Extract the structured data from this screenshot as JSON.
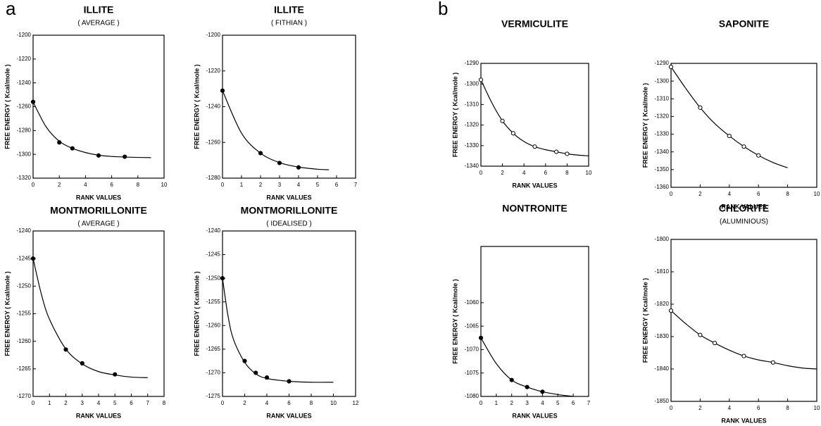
{
  "chart_data": [
    {
      "type": "line",
      "panel_label": "a",
      "title": "ILLITE",
      "subtitle": "( AVERAGE )",
      "x_label": "RANK  VALUES",
      "y_label": "FREE ENERGY ( Kcal/mole )",
      "marker": "filled",
      "color": "#000000",
      "x": [
        0,
        2,
        3,
        5,
        7
      ],
      "values": [
        -1256,
        -1290,
        -1295,
        -1301,
        -1302
      ],
      "curve": {
        "x": [
          0,
          1,
          2,
          3,
          4,
          5,
          6,
          7,
          8,
          9
        ],
        "values": [
          -1256,
          -1277,
          -1289,
          -1295,
          -1298.5,
          -1300.7,
          -1301.8,
          -1302.3,
          -1302.6,
          -1302.8
        ]
      },
      "xlim": [
        0,
        10
      ],
      "xticks": [
        0,
        2,
        4,
        6,
        8,
        10
      ],
      "ylim": [
        -1320,
        -1200
      ],
      "yticks": [
        -1320,
        -1300,
        -1280,
        -1260,
        -1240,
        -1220,
        -1200
      ]
    },
    {
      "type": "line",
      "title": "ILLITE",
      "subtitle": "( FITHIAN )",
      "x_label": "RANK  VALUES",
      "y_label": "FREE ENERGY ( Kcal/mole )",
      "marker": "filled",
      "color": "#000000",
      "x": [
        0,
        2,
        3,
        4
      ],
      "values": [
        -1231,
        -1266,
        -1271.5,
        -1274
      ],
      "curve": {
        "x": [
          0,
          1,
          2,
          3,
          4,
          5,
          5.6
        ],
        "values": [
          -1231,
          -1254.8,
          -1266,
          -1271.3,
          -1273.8,
          -1275,
          -1275.3
        ]
      },
      "xlim": [
        0,
        7
      ],
      "xticks": [
        0,
        1,
        2,
        3,
        4,
        5,
        6,
        7
      ],
      "ylim": [
        -1280,
        -1200
      ],
      "yticks": [
        -1280,
        -1260,
        -1240,
        -1220,
        -1200
      ]
    },
    {
      "type": "line",
      "title": "MONTMORILLONITE",
      "subtitle": "( AVERAGE )",
      "x_label": "RANK  VALUES",
      "y_label": "FREE ENERGY ( Kcal/mole )",
      "marker": "filled",
      "color": "#000000",
      "x": [
        0,
        2,
        3,
        5
      ],
      "values": [
        -1245,
        -1261.5,
        -1264,
        -1266
      ],
      "curve": {
        "x": [
          0,
          0.5,
          1,
          2,
          3,
          4,
          5,
          6,
          7
        ],
        "values": [
          -1245,
          -1251.4,
          -1256,
          -1261.4,
          -1264.1,
          -1265.5,
          -1266.1,
          -1266.5,
          -1266.6
        ]
      },
      "xlim": [
        0,
        8
      ],
      "xticks": [
        0,
        1,
        2,
        3,
        4,
        5,
        6,
        7,
        8
      ],
      "ylim": [
        -1270,
        -1240
      ],
      "yticks": [
        -1270,
        -1265,
        -1260,
        -1255,
        -1250,
        -1245,
        -1240
      ]
    },
    {
      "type": "line",
      "title": "MONTMORILLONITE",
      "subtitle": "( IDEALISED )",
      "x_label": "RANK  VALUES",
      "y_label": "FREE ENERGY ( Kcal/mole )",
      "marker": "filled",
      "color": "#000000",
      "x": [
        0,
        2,
        3,
        4,
        6
      ],
      "values": [
        -1250,
        -1267.5,
        -1270,
        -1271,
        -1271.8
      ],
      "curve": {
        "x": [
          0,
          0.5,
          1,
          2,
          3,
          4,
          6,
          8,
          10
        ],
        "values": [
          -1250,
          -1258,
          -1263,
          -1267.8,
          -1270.2,
          -1271.2,
          -1271.8,
          -1272,
          -1272
        ]
      },
      "xlim": [
        0,
        12
      ],
      "xticks": [
        0,
        2,
        4,
        6,
        8,
        10,
        12
      ],
      "ylim": [
        -1275,
        -1240
      ],
      "yticks": [
        -1275,
        -1270,
        -1265,
        -1260,
        -1255,
        -1250,
        -1245,
        -1240
      ]
    },
    {
      "type": "line",
      "panel_label": "b",
      "title": "VERMICULITE",
      "x_label": "RANK  VALUES",
      "y_label": "FREE ENERGY ( Kcal/mole )",
      "marker": "open",
      "color": "#000000",
      "x": [
        0,
        2,
        3,
        5,
        7,
        8
      ],
      "values": [
        -1298,
        -1318,
        -1324,
        -1330.5,
        -1333,
        -1334
      ],
      "curve": {
        "x": [
          0,
          1,
          2,
          3,
          4,
          5,
          6,
          7,
          8,
          9,
          10
        ],
        "values": [
          -1298,
          -1309,
          -1318,
          -1324,
          -1328,
          -1330.5,
          -1332,
          -1333,
          -1334,
          -1334.6,
          -1335
        ]
      },
      "xlim": [
        0,
        10
      ],
      "xticks": [
        0,
        2,
        4,
        6,
        8,
        10
      ],
      "ylim": [
        -1340,
        -1290
      ],
      "yticks": [
        -1340,
        -1330,
        -1320,
        -1310,
        -1300,
        -1290
      ]
    },
    {
      "type": "line",
      "title": "SAPONITE",
      "x_label": "RANK  VALUES",
      "y_label": "FREE ENERGY ( Kcal/mole )",
      "marker": "open",
      "color": "#000000",
      "x": [
        0,
        2,
        4,
        5,
        6
      ],
      "values": [
        -1292,
        -1315,
        -1331,
        -1337,
        -1342
      ],
      "curve": {
        "x": [
          0,
          1,
          2,
          3,
          4,
          5,
          6,
          7,
          8
        ],
        "values": [
          -1292,
          -1304,
          -1315,
          -1324,
          -1331,
          -1337,
          -1342,
          -1346,
          -1349
        ]
      },
      "xlim": [
        0,
        10
      ],
      "xticks": [
        0,
        2,
        4,
        6,
        8,
        10
      ],
      "ylim": [
        -1360,
        -1290
      ],
      "yticks": [
        -1360,
        -1350,
        -1340,
        -1330,
        -1320,
        -1310,
        -1300,
        -1290
      ]
    },
    {
      "type": "line",
      "title": "NONTRONITE",
      "x_label": "RANK  VALUES",
      "y_label": "FREE ENERGY ( Kcal/mole )",
      "marker": "filled",
      "color": "#000000",
      "x": [
        0,
        2,
        3,
        4
      ],
      "values": [
        -1067.5,
        -1076.5,
        -1078,
        -1079
      ],
      "curve": {
        "x": [
          0,
          1,
          2,
          3,
          4,
          5,
          6
        ],
        "values": [
          -1067.5,
          -1073,
          -1076.5,
          -1078,
          -1079,
          -1079.6,
          -1080
        ]
      },
      "xlim": [
        0,
        7
      ],
      "xticks": [
        0,
        1,
        2,
        3,
        4,
        5,
        6,
        7
      ],
      "ylim": [
        -1080,
        -1048
      ],
      "yticks": [
        -1080,
        -1075,
        -1070,
        -1065,
        -1060
      ]
    },
    {
      "type": "line",
      "title": "CHLORITE",
      "subtitle": "(ALUMINIOUS)",
      "x_label": "RANK  VALUES",
      "y_label": "FREE ENERGY ( Kcal/mole )",
      "marker": "open",
      "color": "#000000",
      "x": [
        0,
        2,
        3,
        5,
        7
      ],
      "values": [
        -1822,
        -1829.5,
        -1832,
        -1836,
        -1838
      ],
      "curve": {
        "x": [
          0,
          1,
          2,
          3,
          4,
          5,
          6,
          7,
          8,
          9,
          10
        ],
        "values": [
          -1822,
          -1826,
          -1829.5,
          -1832,
          -1834.2,
          -1836,
          -1837.2,
          -1838,
          -1839,
          -1839.7,
          -1840
        ]
      },
      "xlim": [
        0,
        10
      ],
      "xticks": [
        0,
        2,
        4,
        6,
        8,
        10
      ],
      "ylim": [
        -1850,
        -1800
      ],
      "yticks": [
        -1850,
        -1840,
        -1830,
        -1820,
        -1810,
        -1800
      ]
    }
  ]
}
